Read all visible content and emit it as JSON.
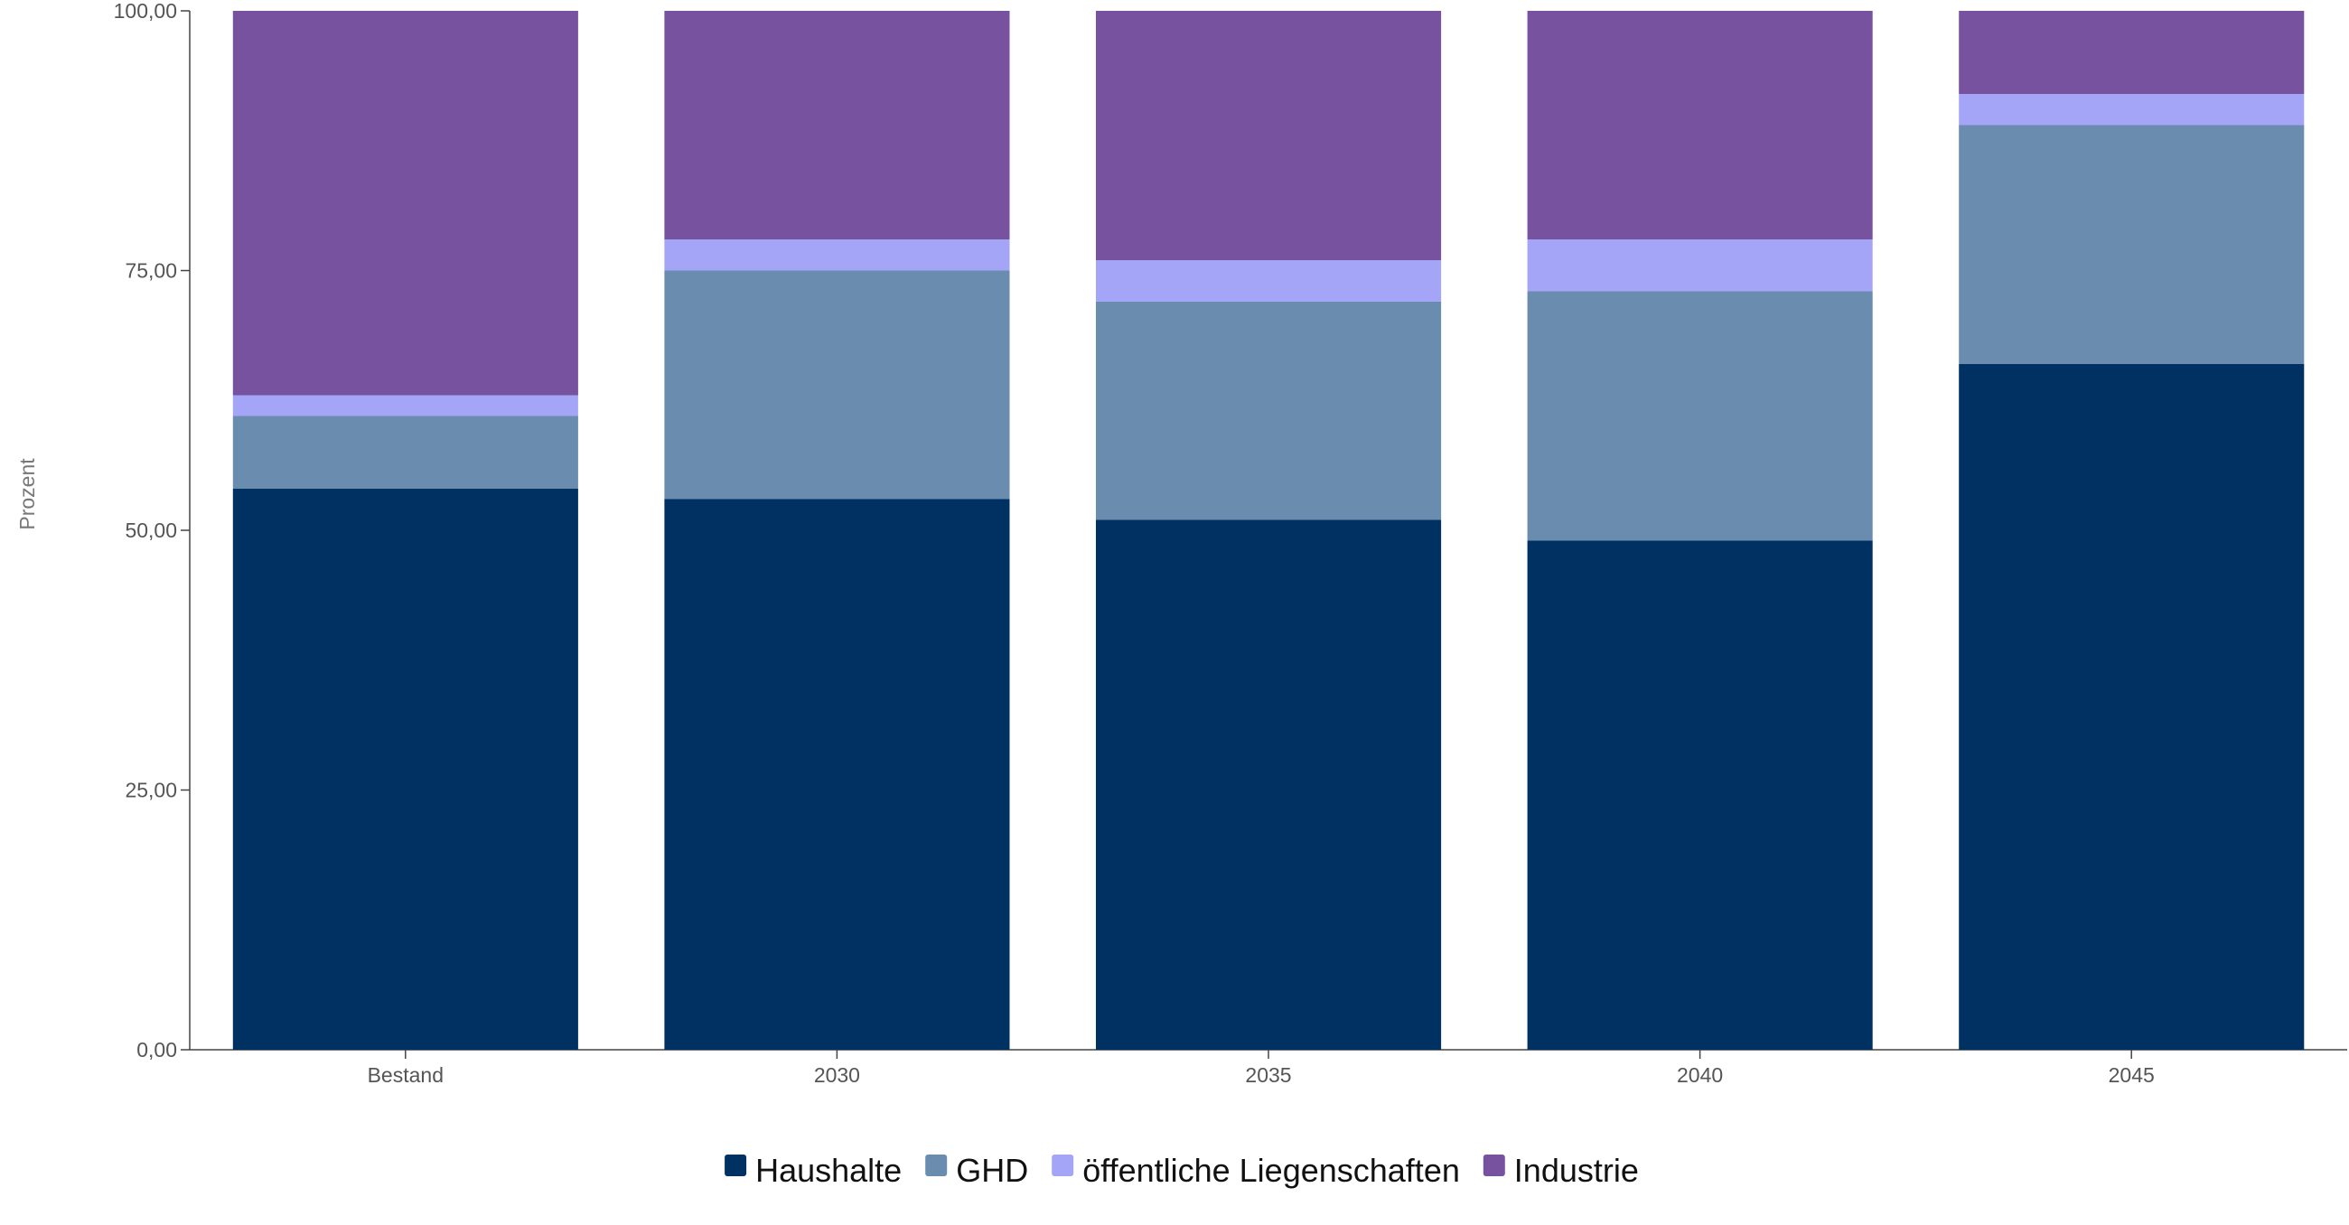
{
  "chart_data": {
    "type": "bar",
    "stacked": true,
    "title": "",
    "xlabel": "",
    "ylabel": "Prozent",
    "ylim": [
      0,
      100
    ],
    "yticks": [
      "0,00",
      "25,00",
      "50,00",
      "75,00",
      "100,00"
    ],
    "categories": [
      "Bestand",
      "2030",
      "2035",
      "2040",
      "2045"
    ],
    "series": [
      {
        "name": "Haushalte",
        "color": "#003163",
        "values": [
          54,
          53,
          51,
          49,
          66
        ]
      },
      {
        "name": "GHD",
        "color": "#6a8caf",
        "values": [
          7,
          22,
          21,
          24,
          23
        ]
      },
      {
        "name": "öffentliche Liegenschaften",
        "color": "#a5a5f7",
        "values": [
          2,
          3,
          4,
          5,
          3
        ]
      },
      {
        "name": "Industrie",
        "color": "#77529e",
        "values": [
          37,
          22,
          24,
          22,
          8
        ]
      }
    ],
    "grid": false,
    "legend_position": "bottom"
  }
}
